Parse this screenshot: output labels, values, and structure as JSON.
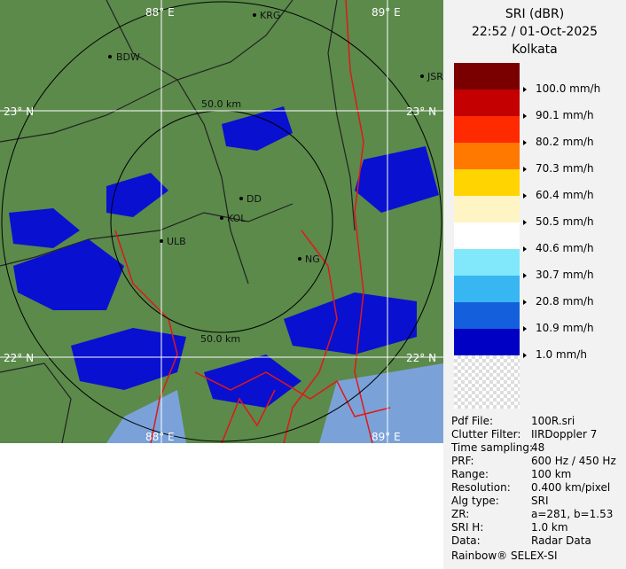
{
  "header": {
    "title": "SRI (dBR)",
    "timestamp": "22:52 / 01-Oct-2025",
    "site": "Kolkata"
  },
  "legend": {
    "colors": [
      "#7a0000",
      "#c40000",
      "#ff2a00",
      "#ff7800",
      "#ffd400",
      "#fff4c4",
      "#ffffff",
      "#80e8fa",
      "#38b6f2",
      "#1460dc",
      "#0000c4"
    ],
    "labels": [
      "100.0 mm/h",
      "90.1 mm/h",
      "80.2 mm/h",
      "70.3 mm/h",
      "60.4 mm/h",
      "50.5 mm/h",
      "40.6 mm/h",
      "30.7 mm/h",
      "20.8 mm/h",
      "10.9 mm/h",
      "1.0 mm/h"
    ]
  },
  "info": [
    [
      "Pdf File:",
      "100R.sri"
    ],
    [
      "Clutter Filter:",
      "IIRDoppler 7"
    ],
    [
      "Time sampling:",
      "48"
    ],
    [
      "PRF:",
      "600 Hz / 450 Hz"
    ],
    [
      "Range:",
      "100 km"
    ],
    [
      "Resolution:",
      "0.400 km/pixel"
    ],
    [
      "Alg type:",
      "SRI"
    ],
    [
      "ZR:",
      "a=281, b=1.53"
    ],
    [
      "SRI H:",
      "1.0 km"
    ],
    [
      "Data:",
      "Radar Data"
    ]
  ],
  "footer": "Rainbow® SELEX-SI",
  "map": {
    "lon_labels": [
      "88° E",
      "89° E"
    ],
    "lat_labels": [
      "23° N",
      "22° N"
    ],
    "range_label": "50.0 km",
    "cities": [
      "KRG",
      "BDW",
      "JSR",
      "DD",
      "KOL",
      "ULB",
      "NG"
    ]
  }
}
